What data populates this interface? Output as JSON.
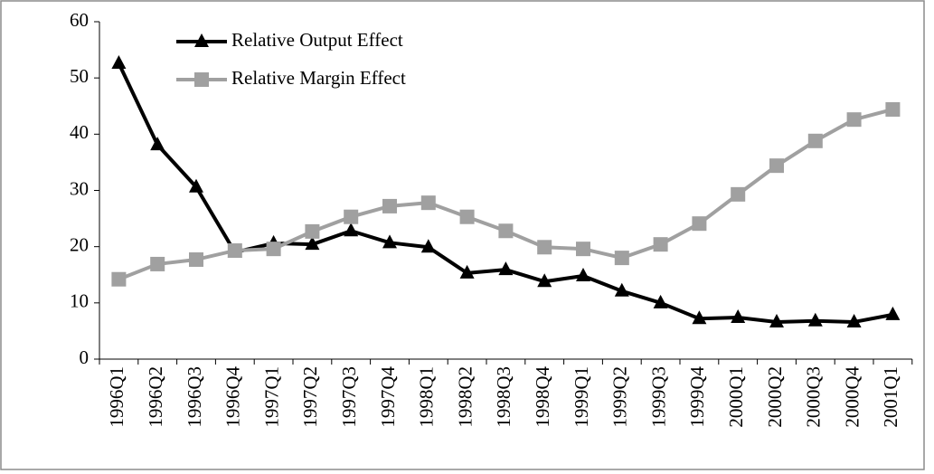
{
  "chart_data": {
    "type": "line",
    "categories": [
      "1996Q1",
      "1996Q2",
      "1996Q3",
      "1996Q4",
      "1997Q1",
      "1997Q2",
      "1997Q3",
      "1997Q4",
      "1998Q1",
      "1998Q2",
      "1998Q3",
      "1998Q4",
      "1999Q1",
      "1999Q2",
      "1999Q3",
      "1999Q4",
      "2000Q1",
      "2000Q2",
      "2000Q3",
      "2000Q4",
      "2001Q1"
    ],
    "series": [
      {
        "name": "Relative Output Effect",
        "color": "#000000",
        "marker": "triangle",
        "values": [
          52.6,
          38.1,
          30.6,
          19.0,
          20.6,
          20.4,
          22.8,
          20.7,
          19.9,
          15.3,
          15.9,
          13.8,
          14.8,
          12.1,
          10.0,
          7.2,
          7.4,
          6.6,
          6.8,
          6.6,
          7.9
        ]
      },
      {
        "name": "Relative Margin Effect",
        "color": "#a0a0a0",
        "marker": "square",
        "values": [
          14.2,
          16.9,
          17.7,
          19.3,
          19.6,
          22.7,
          25.3,
          27.2,
          27.8,
          25.3,
          22.8,
          19.9,
          19.6,
          18.0,
          20.4,
          24.1,
          29.3,
          34.4,
          38.8,
          42.6,
          44.4
        ]
      }
    ],
    "ylim": [
      0,
      60
    ],
    "yticks": [
      0,
      10,
      20,
      30,
      40,
      50,
      60
    ],
    "grid": false,
    "legend": "top-left"
  }
}
